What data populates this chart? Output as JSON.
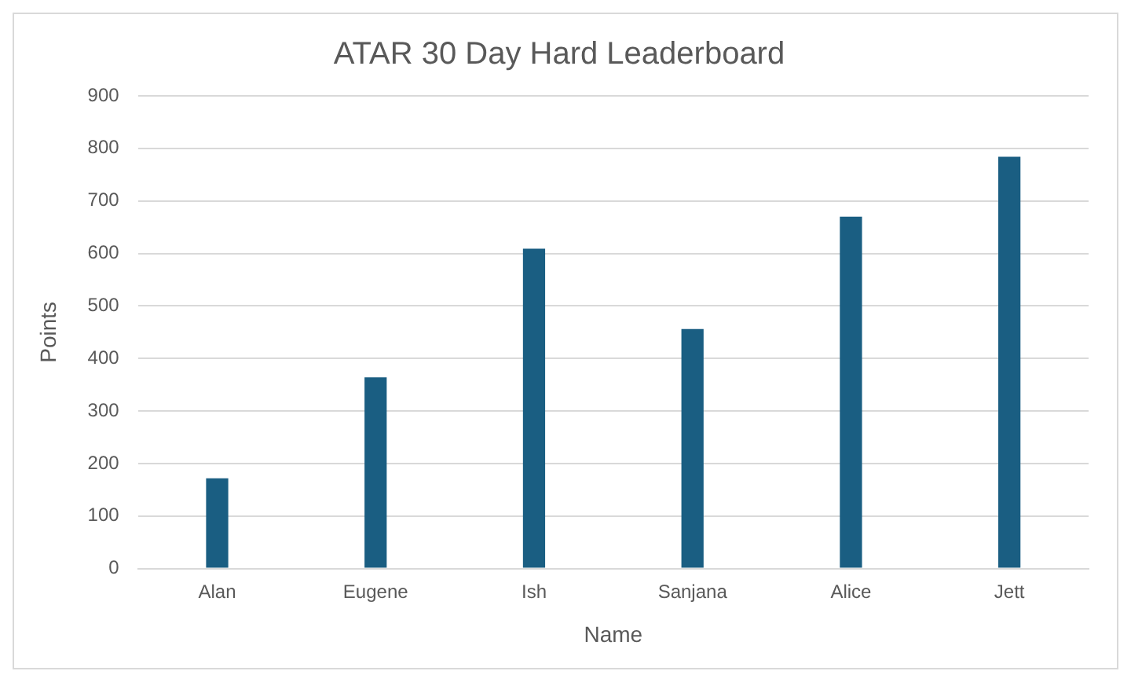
{
  "chart_data": {
    "type": "bar",
    "title": "ATAR 30 Day Hard Leaderboard",
    "xlabel": "Name",
    "ylabel": "Points",
    "categories": [
      "Alan",
      "Eugene",
      "Ish",
      "Sanjana",
      "Alice",
      "Jett"
    ],
    "values": [
      172,
      364,
      609,
      456,
      670,
      784
    ],
    "color": "#1a5e82",
    "ylim": [
      0,
      900
    ],
    "yticks": [
      0,
      100,
      200,
      300,
      400,
      500,
      600,
      700,
      800,
      900
    ],
    "grid": "y",
    "legend": false
  }
}
